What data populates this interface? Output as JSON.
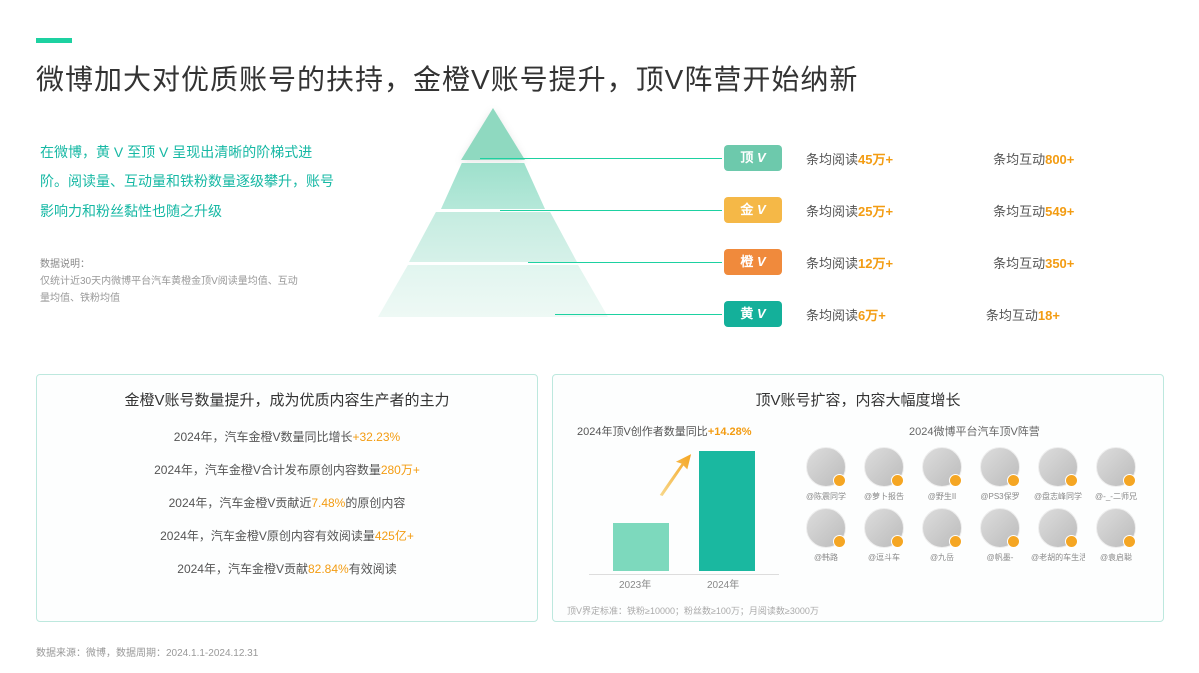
{
  "colors": {
    "accent": "#1dd1a1",
    "teal_text": "#16b8a4",
    "highlight": "#f39c12",
    "tier_ding": "#6dc9ac",
    "tier_jin": "#f5b847",
    "tier_cheng": "#f08a3c",
    "tier_huang": "#14b09a"
  },
  "title": "微博加大对优质账号的扶持，金橙V账号提升，顶V阵营开始纳新",
  "intro": "在微博，黄 V 至顶 V 呈现出清晰的阶梯式进阶。阅读量、互动量和铁粉数量逐级攀升，账号影响力和粉丝黏性也随之升级",
  "data_note_title": "数据说明：",
  "data_note_body": "仅统计近30天内微博平台汽车黄橙金顶V阅读量均值、互动量均值、铁粉均值",
  "tiers": [
    {
      "name": "顶",
      "reads_pre": "条均阅读",
      "reads_val": "45万+",
      "inter_pre": "条均互动",
      "inter_val": "800+",
      "badge_bg": "#6dc9ac"
    },
    {
      "name": "金",
      "reads_pre": "条均阅读",
      "reads_val": "25万+",
      "inter_pre": "条均互动",
      "inter_val": "549+",
      "badge_bg": "#f5b847"
    },
    {
      "name": "橙",
      "reads_pre": "条均阅读",
      "reads_val": "12万+",
      "inter_pre": "条均互动",
      "inter_val": "350+",
      "badge_bg": "#f08a3c"
    },
    {
      "name": "黄",
      "reads_pre": "条均阅读",
      "reads_val": "6万+",
      "inter_pre": "条均互动",
      "inter_val": "18+",
      "badge_bg": "#14b09a"
    }
  ],
  "left_panel": {
    "title": "金橙V账号数量提升，成为优质内容生产者的主力",
    "items": [
      {
        "pre": "2024年，汽车金橙V数量同比增长",
        "hl": "+32.23%",
        "post": ""
      },
      {
        "pre": "2024年，汽车金橙V合计发布原创内容数量",
        "hl": "280万+",
        "post": ""
      },
      {
        "pre": "2024年，汽车金橙V贡献近",
        "hl": "7.48%",
        "post": "的原创内容"
      },
      {
        "pre": "2024年，汽车金橙V原创内容有效阅读量",
        "hl": "425亿+",
        "post": ""
      },
      {
        "pre": "2024年，汽车金橙V贡献",
        "hl": "82.84%",
        "post": "有效阅读"
      }
    ]
  },
  "right_panel": {
    "title": "顶V账号扩容，内容大幅度增长",
    "chart_label_pre": "2024年顶V创作者数量同比",
    "chart_label_hl": "+14.28%",
    "chart": {
      "x": [
        "2023年",
        "2024年"
      ],
      "values": [
        48,
        120
      ],
      "colors": [
        "#7dd9bd",
        "#1ab8a0"
      ]
    },
    "note": "顶V界定标准：铁粉≥10000；粉丝数≥100万；月阅读数≥3000万",
    "avatar_title": "2024微博平台汽车顶V阵营",
    "avatars": [
      "@陈震同学",
      "@萝卜报告",
      "@野生II",
      "@PS3保罗",
      "@盘志峰同学",
      "@-_-二师兄",
      "@韩路",
      "@逗斗车",
      "@九岳",
      "@帆墨-",
      "@老胡的车生活",
      "@袁启聪"
    ]
  },
  "footer": "数据来源：微博，数据周期：2024.1.1-2024.12.31"
}
